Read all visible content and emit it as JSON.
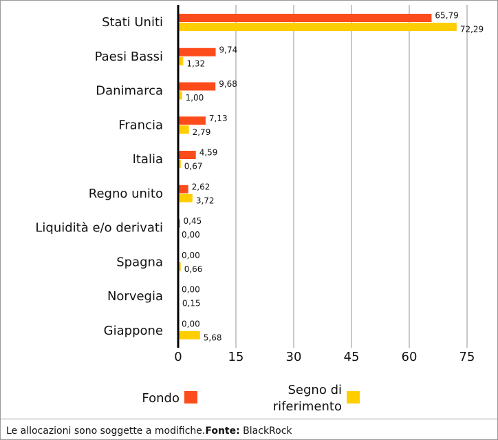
{
  "chart_data": {
    "type": "barh",
    "categories": [
      "Stati Uniti",
      "Paesi Bassi",
      "Danimarca",
      "Francia",
      "Italia",
      "Regno unito",
      "Liquidità e/o derivati",
      "Spagna",
      "Norvegia",
      "Giappone"
    ],
    "series": [
      {
        "name": "Fondo",
        "color": "#fc4c1b",
        "values": [
          65.79,
          9.74,
          9.68,
          7.13,
          4.59,
          2.62,
          0.45,
          0.0,
          0.0,
          0.0
        ],
        "value_labels": [
          "65,79",
          "9,74",
          "9,68",
          "7,13",
          "4,59",
          "2,62",
          "0,45",
          "0,00",
          "0,00",
          "0,00"
        ]
      },
      {
        "name": "Segno di riferimento",
        "color": "#ffce00",
        "values": [
          72.29,
          1.32,
          1.0,
          2.79,
          0.67,
          3.72,
          0.0,
          0.66,
          0.15,
          5.68
        ],
        "value_labels": [
          "72,29",
          "1,32",
          "1,00",
          "2,79",
          "0,67",
          "3,72",
          "0,00",
          "0,66",
          "0,15",
          "5,68"
        ]
      }
    ],
    "xlim": [
      0,
      75
    ],
    "xticks": [
      0,
      15,
      30,
      45,
      60,
      75
    ],
    "grid": true
  },
  "footnote": {
    "text": "Le allocazioni sono soggette a modifiche.",
    "source_label": "Fonte:",
    "source": " BlackRock"
  }
}
